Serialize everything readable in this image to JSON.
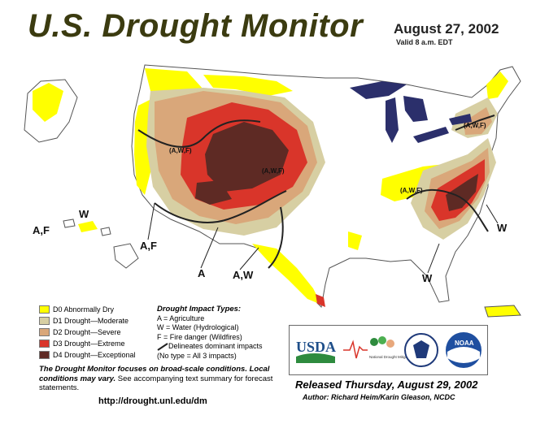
{
  "header": {
    "title": "U.S. Drought Monitor",
    "date": "August 27, 2002",
    "valid": "Valid 8 a.m. EDT"
  },
  "colors": {
    "d0": "#ffff00",
    "d1": "#fcd37f",
    "d2": "#e8a87c",
    "d3": "#e34a33",
    "d4": "#6b2a2a",
    "water": "#2b2f6b",
    "land": "#ffffff"
  },
  "legend": {
    "items": [
      {
        "code": "D0",
        "label": "D0 Abnormally Dry",
        "color": "#ffff00"
      },
      {
        "code": "D1",
        "label": "D1 Drought—Moderate",
        "color": "#d7cfa3"
      },
      {
        "code": "D2",
        "label": "D2 Drought—Severe",
        "color": "#d9a77a"
      },
      {
        "code": "D3",
        "label": "D3 Drought—Extreme",
        "color": "#d9352a"
      },
      {
        "code": "D4",
        "label": "D4 Drought—Exceptional",
        "color": "#5e2a24"
      }
    ]
  },
  "impacts": {
    "heading": "Drought  Impact  Types:",
    "agriculture": "A = Agriculture",
    "water": "W = Water (Hydrological)",
    "fire": "F = Fire danger (Wildfires)",
    "delineates": "Delineates dominant impacts",
    "none": "(No type = All 3 impacts)"
  },
  "map_labels": {
    "west_upper": "(A,W,F)",
    "plains": "(A,W,F)",
    "northeast": "(A,W,F)",
    "southeast": "(A,W,F)",
    "af_left": "A,F",
    "w_hawaii": "W",
    "af_bottom": "A,F",
    "a_bottom": "A",
    "aw_bottom": "A,W",
    "w_southeast": "W",
    "w_east": "W"
  },
  "note": {
    "bold_italic": "The Drought Monitor focuses on broad-scale conditions. Local conditions may vary.",
    "plain": " See accompanying text summary for forecast statements."
  },
  "url": "http://drought.unl.edu/dm",
  "logos": {
    "usda": "USDA",
    "ndmc": "National Drought Mitigation Center",
    "noaa": "NOAA"
  },
  "released": "Released Thursday, August 29, 2002",
  "author": {
    "label": "Author:",
    "names": "Richard Heim/Karin Gleason, NCDC"
  }
}
